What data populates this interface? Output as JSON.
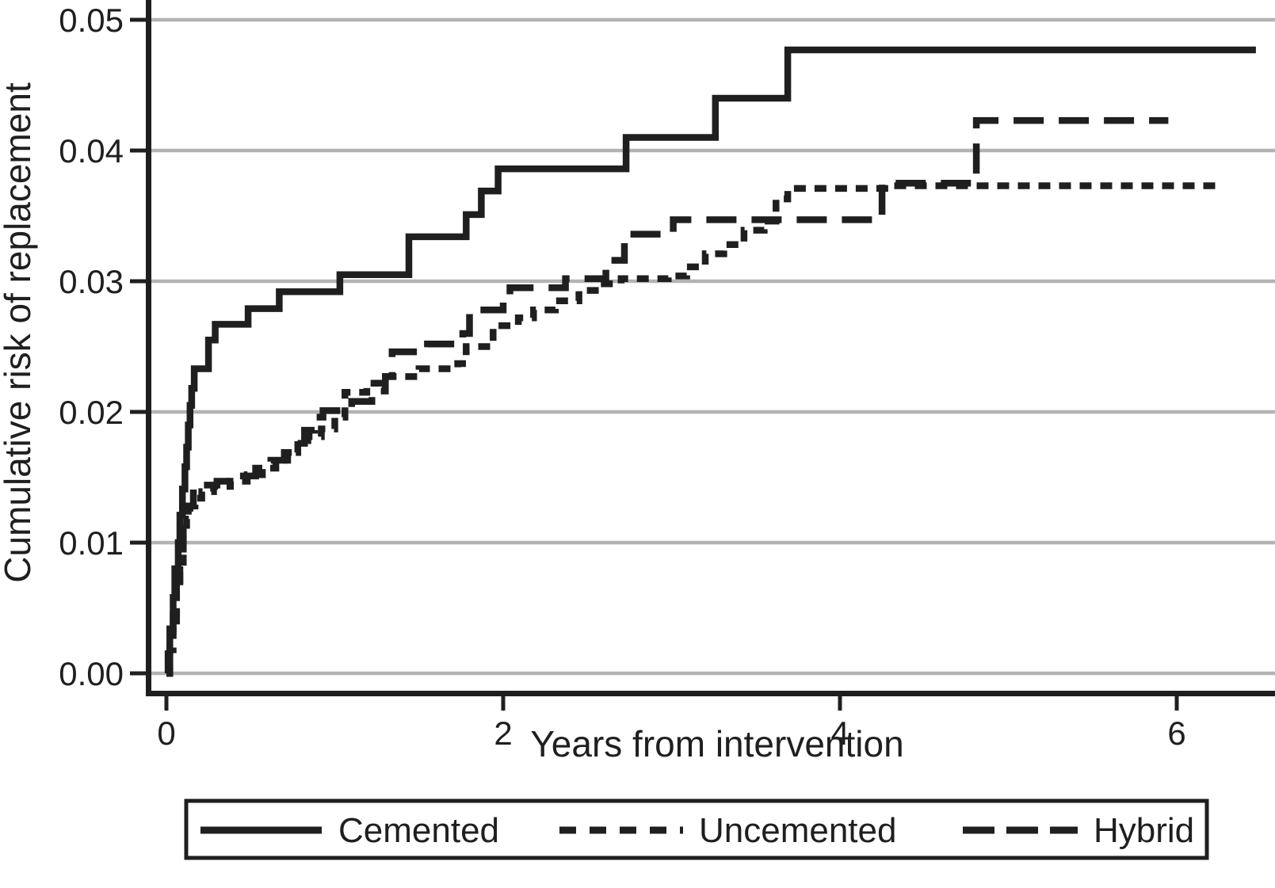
{
  "colors": {
    "ink": "#1f1f1f",
    "grid": "#b3b3b3",
    "background": "#ffffff"
  },
  "chart_data": {
    "type": "line",
    "subtype": "step-cumulative-incidence",
    "title": "",
    "xlabel": "Years from intervention",
    "ylabel": "Cumulative risk of replacement",
    "xlim": [
      0,
      6.6
    ],
    "ylim": [
      0.0,
      0.052
    ],
    "grid": "horizontal",
    "legend_position": "bottom",
    "xticks": [
      {
        "label": "0",
        "value": 0
      },
      {
        "label": "2",
        "value": 2
      },
      {
        "label": "4",
        "value": 4
      },
      {
        "label": "6",
        "value": 6
      }
    ],
    "yticks": [
      {
        "label": "0.00",
        "value": 0.0
      },
      {
        "label": "0.01",
        "value": 0.01
      },
      {
        "label": "0.02",
        "value": 0.02
      },
      {
        "label": "0.03",
        "value": 0.03
      },
      {
        "label": "0.04",
        "value": 0.04
      },
      {
        "label": "0.05",
        "value": 0.05
      }
    ],
    "series": [
      {
        "name": "Uncemented",
        "style": "short-dash",
        "points": [
          [
            0,
            0
          ],
          [
            0.02,
            0.0018
          ],
          [
            0.04,
            0.004
          ],
          [
            0.06,
            0.0062
          ],
          [
            0.08,
            0.0085
          ],
          [
            0.1,
            0.0105
          ],
          [
            0.12,
            0.0118
          ],
          [
            0.14,
            0.0128
          ],
          [
            0.17,
            0.0134
          ],
          [
            0.21,
            0.0139
          ],
          [
            0.28,
            0.0143
          ],
          [
            0.38,
            0.0147
          ],
          [
            0.48,
            0.0152
          ],
          [
            0.57,
            0.0157
          ],
          [
            0.65,
            0.0163
          ],
          [
            0.72,
            0.0169
          ],
          [
            0.78,
            0.0175
          ],
          [
            0.84,
            0.0181
          ],
          [
            0.92,
            0.0187
          ],
          [
            1.0,
            0.0196
          ],
          [
            1.06,
            0.0215
          ],
          [
            1.19,
            0.0222
          ],
          [
            1.3,
            0.0227
          ],
          [
            1.5,
            0.0233
          ],
          [
            1.73,
            0.0237
          ],
          [
            1.78,
            0.025
          ],
          [
            1.94,
            0.0266
          ],
          [
            2.09,
            0.0272
          ],
          [
            2.18,
            0.0278
          ],
          [
            2.31,
            0.0285
          ],
          [
            2.45,
            0.0293
          ],
          [
            2.57,
            0.0298
          ],
          [
            2.7,
            0.0302
          ],
          [
            2.98,
            0.0304
          ],
          [
            3.09,
            0.0311
          ],
          [
            3.2,
            0.0321
          ],
          [
            3.31,
            0.0328
          ],
          [
            3.43,
            0.0339
          ],
          [
            3.55,
            0.0346
          ],
          [
            3.62,
            0.0363
          ],
          [
            3.69,
            0.0371
          ],
          [
            4.32,
            0.0373
          ],
          [
            6.26,
            0.0373
          ]
        ]
      },
      {
        "name": "Hybrid",
        "style": "long-dash",
        "points": [
          [
            0,
            0
          ],
          [
            0.02,
            0.002
          ],
          [
            0.04,
            0.0045
          ],
          [
            0.06,
            0.007
          ],
          [
            0.08,
            0.0095
          ],
          [
            0.1,
            0.0115
          ],
          [
            0.13,
            0.0128
          ],
          [
            0.16,
            0.0138
          ],
          [
            0.2,
            0.0144
          ],
          [
            0.3,
            0.0147
          ],
          [
            0.42,
            0.0151
          ],
          [
            0.53,
            0.0157
          ],
          [
            0.62,
            0.0163
          ],
          [
            0.7,
            0.0169
          ],
          [
            0.76,
            0.0176
          ],
          [
            0.82,
            0.0186
          ],
          [
            0.88,
            0.0196
          ],
          [
            0.93,
            0.0201
          ],
          [
            1.1,
            0.0208
          ],
          [
            1.22,
            0.0216
          ],
          [
            1.3,
            0.0227
          ],
          [
            1.34,
            0.0246
          ],
          [
            1.55,
            0.0252
          ],
          [
            1.76,
            0.026
          ],
          [
            1.8,
            0.0278
          ],
          [
            2.0,
            0.0288
          ],
          [
            2.04,
            0.0295
          ],
          [
            2.37,
            0.0302
          ],
          [
            2.61,
            0.0316
          ],
          [
            2.72,
            0.0336
          ],
          [
            3.01,
            0.0347
          ],
          [
            4.25,
            0.0375
          ],
          [
            4.81,
            0.0423
          ],
          [
            5.95,
            0.0423
          ]
        ]
      },
      {
        "name": "Cemented",
        "style": "solid",
        "points": [
          [
            0,
            0
          ],
          [
            0.01,
            0.0015
          ],
          [
            0.02,
            0.0034
          ],
          [
            0.04,
            0.0058
          ],
          [
            0.05,
            0.008
          ],
          [
            0.07,
            0.01
          ],
          [
            0.08,
            0.0121
          ],
          [
            0.095,
            0.0141
          ],
          [
            0.11,
            0.0158
          ],
          [
            0.12,
            0.0173
          ],
          [
            0.13,
            0.019
          ],
          [
            0.14,
            0.0205
          ],
          [
            0.15,
            0.0218
          ],
          [
            0.165,
            0.0233
          ],
          [
            0.25,
            0.0255
          ],
          [
            0.29,
            0.0267
          ],
          [
            0.485,
            0.0279
          ],
          [
            0.67,
            0.0292
          ],
          [
            1.03,
            0.0305
          ],
          [
            1.44,
            0.0334
          ],
          [
            1.78,
            0.0351
          ],
          [
            1.87,
            0.0369
          ],
          [
            1.97,
            0.0386
          ],
          [
            2.73,
            0.041
          ],
          [
            3.26,
            0.044
          ],
          [
            3.69,
            0.0477
          ],
          [
            6.47,
            0.0477
          ]
        ]
      }
    ]
  },
  "legend": {
    "entries": [
      {
        "label": "Cemented",
        "style": "solid"
      },
      {
        "label": "Uncemented",
        "style": "short-dash"
      },
      {
        "label": "Hybrid",
        "style": "long-dash"
      }
    ]
  }
}
